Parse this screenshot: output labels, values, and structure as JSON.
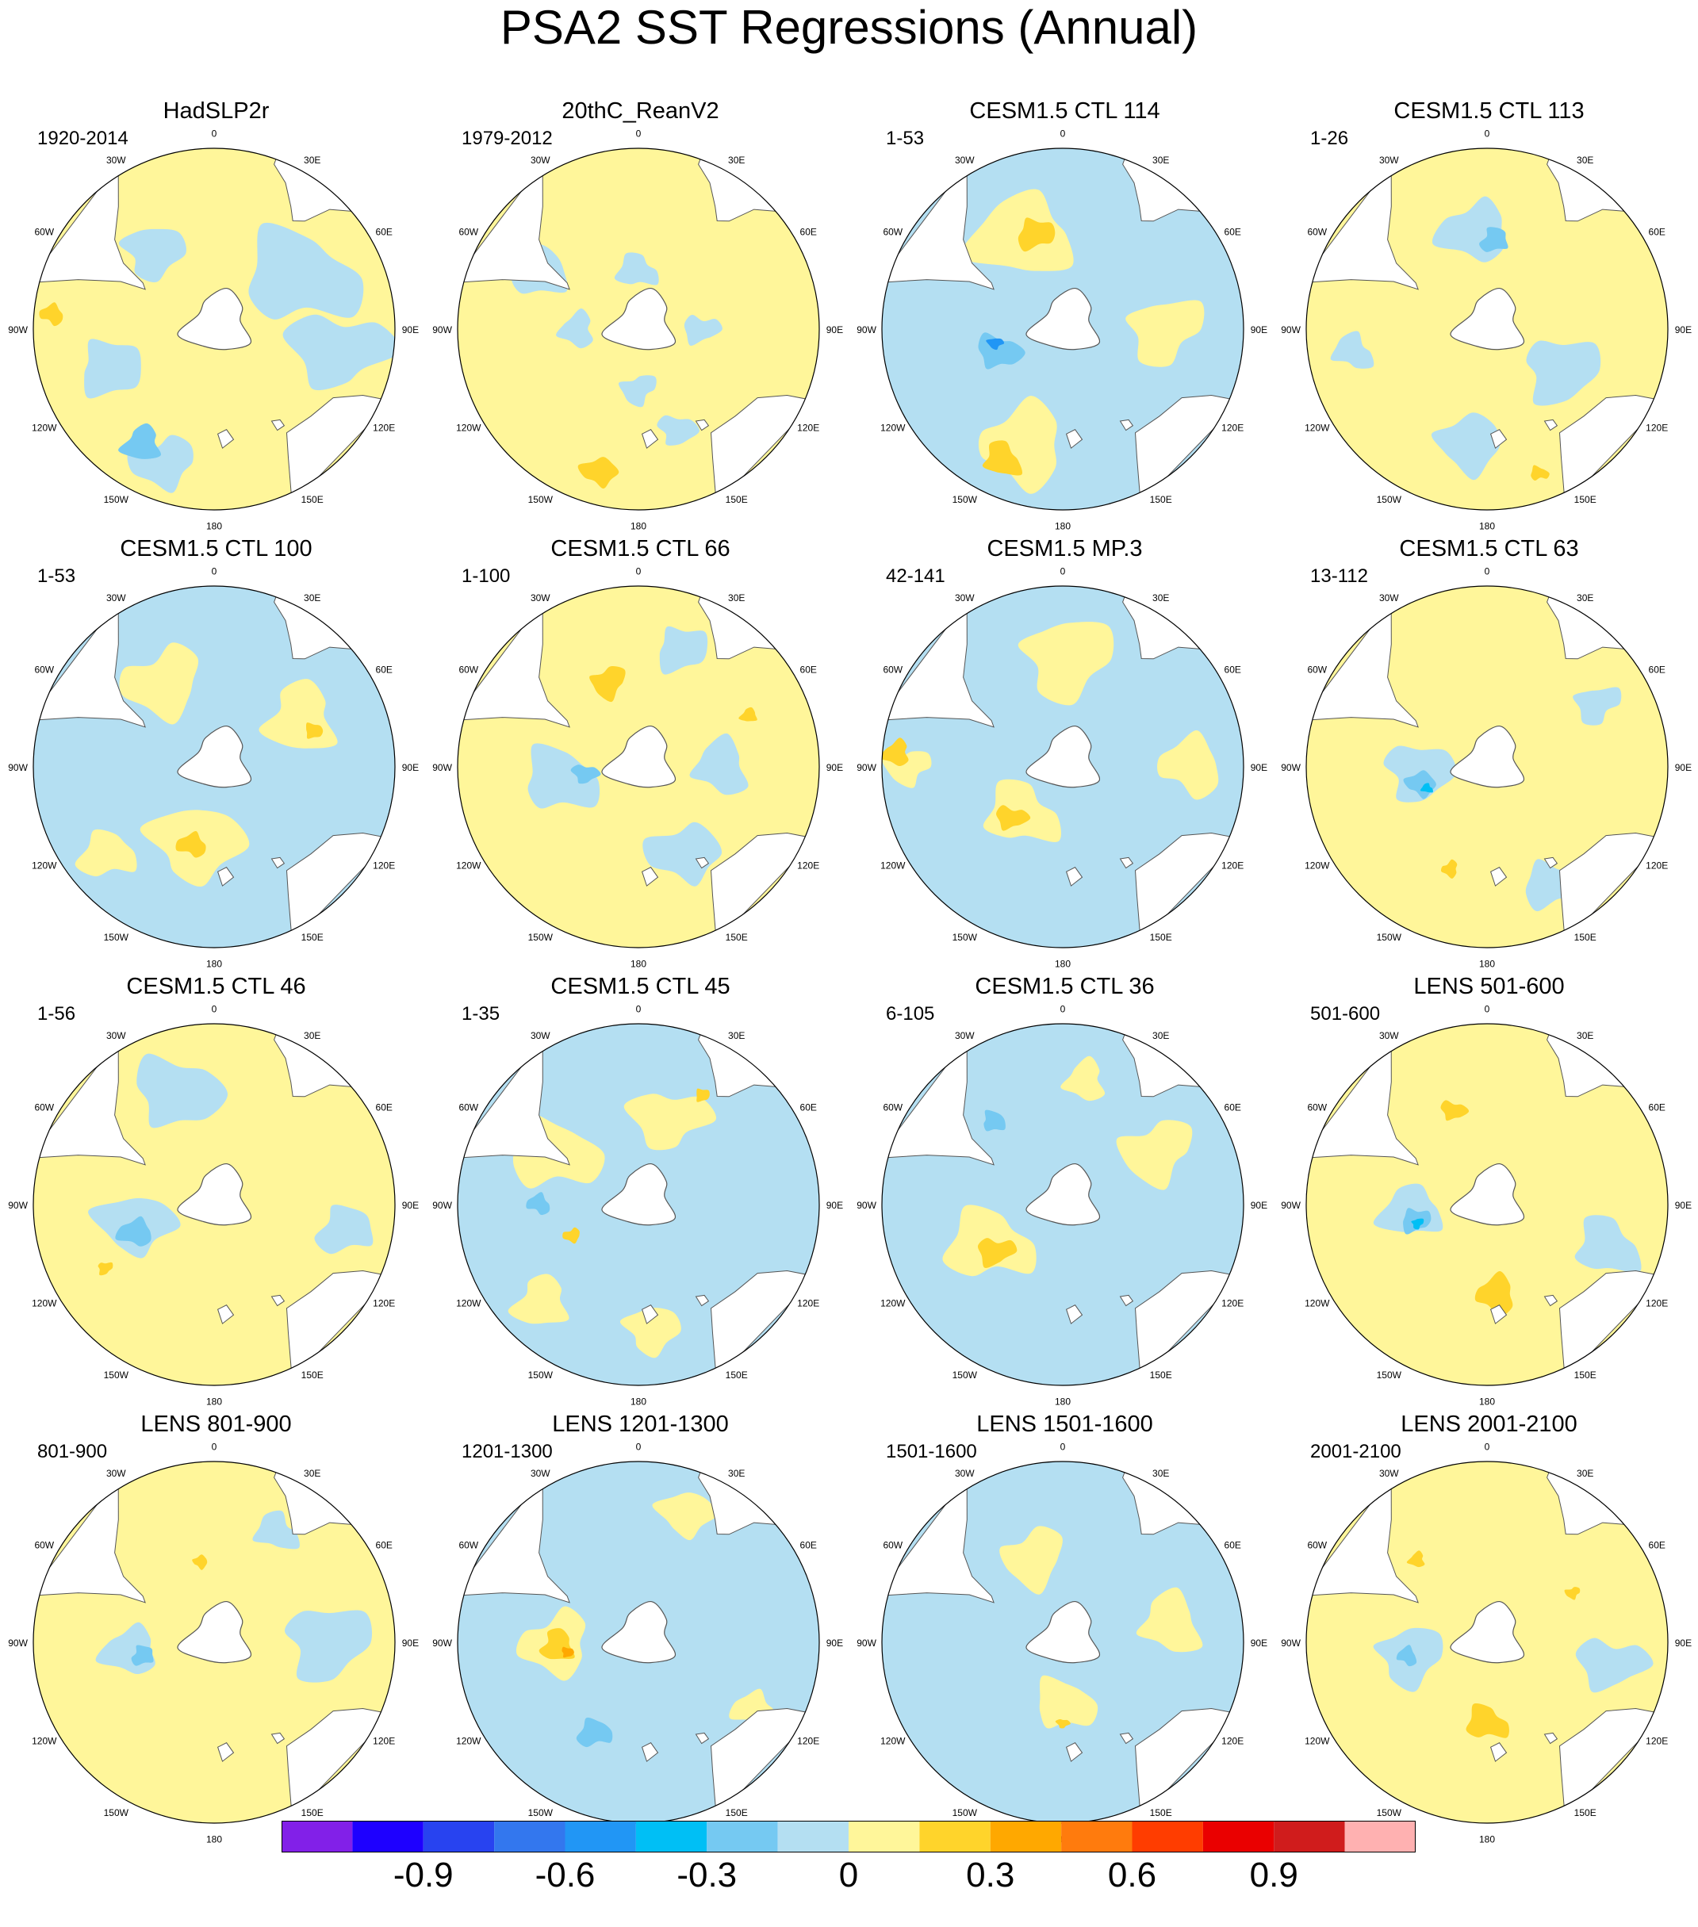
{
  "title": "PSA2 SST Regressions (Annual)",
  "longitude_labels": [
    {
      "lon": 0,
      "label": "0"
    },
    {
      "lon": 30,
      "label": "30E"
    },
    {
      "lon": 60,
      "label": "60E"
    },
    {
      "lon": 90,
      "label": "90E"
    },
    {
      "lon": 120,
      "label": "120E"
    },
    {
      "lon": 150,
      "label": "150E"
    },
    {
      "lon": 180,
      "label": "180"
    },
    {
      "lon": 210,
      "label": "150W"
    },
    {
      "lon": 240,
      "label": "120W"
    },
    {
      "lon": 270,
      "label": "90W"
    },
    {
      "lon": 300,
      "label": "60W"
    },
    {
      "lon": 330,
      "label": "30W"
    }
  ],
  "panels": [
    {
      "title": "HadSLP2r",
      "period": "1920-2014",
      "background": "yellow",
      "blobs": [
        {
          "lon": 60,
          "r": 0.55,
          "size": 0.38,
          "level": "lightblue"
        },
        {
          "lon": 100,
          "r": 0.7,
          "size": 0.32,
          "level": "lightblue"
        },
        {
          "lon": 200,
          "r": 0.78,
          "size": 0.22,
          "level": "lightblue"
        },
        {
          "lon": 212,
          "r": 0.74,
          "size": 0.14,
          "level": "medblue"
        },
        {
          "lon": 250,
          "r": 0.62,
          "size": 0.22,
          "level": "lightblue"
        },
        {
          "lon": 320,
          "r": 0.55,
          "size": 0.2,
          "level": "lightblue"
        },
        {
          "lon": 275,
          "r": 0.9,
          "size": 0.08,
          "level": "gold"
        }
      ]
    },
    {
      "title": "20thC_ReanV2",
      "period": "1979-2012",
      "background": "yellow",
      "blobs": [
        {
          "lon": 0,
          "r": 0.32,
          "size": 0.14,
          "level": "lightblue"
        },
        {
          "lon": 90,
          "r": 0.35,
          "size": 0.12,
          "level": "lightblue"
        },
        {
          "lon": 180,
          "r": 0.33,
          "size": 0.12,
          "level": "lightblue"
        },
        {
          "lon": 270,
          "r": 0.34,
          "size": 0.13,
          "level": "lightblue"
        },
        {
          "lon": 300,
          "r": 0.65,
          "size": 0.2,
          "level": "lightblue"
        },
        {
          "lon": 160,
          "r": 0.6,
          "size": 0.12,
          "level": "lightblue"
        },
        {
          "lon": 195,
          "r": 0.82,
          "size": 0.12,
          "level": "gold"
        }
      ]
    },
    {
      "title": "CESM1.5 CTL 114",
      "period": "1-53",
      "background": "lightblue",
      "blobs": [
        {
          "lon": 340,
          "r": 0.55,
          "size": 0.36,
          "level": "yellow"
        },
        {
          "lon": 345,
          "r": 0.55,
          "size": 0.13,
          "level": "gold"
        },
        {
          "lon": 90,
          "r": 0.55,
          "size": 0.25,
          "level": "yellow"
        },
        {
          "lon": 200,
          "r": 0.68,
          "size": 0.3,
          "level": "yellow"
        },
        {
          "lon": 205,
          "r": 0.8,
          "size": 0.13,
          "level": "gold"
        },
        {
          "lon": 250,
          "r": 0.38,
          "size": 0.14,
          "level": "medblue"
        },
        {
          "lon": 258,
          "r": 0.38,
          "size": 0.05,
          "level": "deepblue"
        }
      ]
    },
    {
      "title": "CESM1.5 CTL 113",
      "period": "1-26",
      "background": "yellow",
      "blobs": [
        {
          "lon": 355,
          "r": 0.55,
          "size": 0.25,
          "level": "lightblue"
        },
        {
          "lon": 5,
          "r": 0.5,
          "size": 0.1,
          "level": "medblue"
        },
        {
          "lon": 120,
          "r": 0.45,
          "size": 0.25,
          "level": "lightblue"
        },
        {
          "lon": 190,
          "r": 0.65,
          "size": 0.22,
          "level": "lightblue"
        },
        {
          "lon": 260,
          "r": 0.75,
          "size": 0.14,
          "level": "lightblue"
        },
        {
          "lon": 160,
          "r": 0.85,
          "size": 0.06,
          "level": "gold"
        }
      ]
    },
    {
      "title": "CESM1.5 CTL 100",
      "period": "1-53",
      "background": "lightblue",
      "blobs": [
        {
          "lon": 330,
          "r": 0.55,
          "size": 0.28,
          "level": "yellow"
        },
        {
          "lon": 60,
          "r": 0.55,
          "size": 0.26,
          "level": "yellow"
        },
        {
          "lon": 70,
          "r": 0.58,
          "size": 0.06,
          "level": "gold"
        },
        {
          "lon": 195,
          "r": 0.45,
          "size": 0.3,
          "level": "yellow"
        },
        {
          "lon": 195,
          "r": 0.45,
          "size": 0.1,
          "level": "gold"
        },
        {
          "lon": 230,
          "r": 0.75,
          "size": 0.2,
          "level": "yellow"
        }
      ]
    },
    {
      "title": "CESM1.5 CTL 66",
      "period": "1-100",
      "background": "yellow",
      "blobs": [
        {
          "lon": 340,
          "r": 0.5,
          "size": 0.12,
          "level": "gold"
        },
        {
          "lon": 90,
          "r": 0.45,
          "size": 0.2,
          "level": "lightblue"
        },
        {
          "lon": 260,
          "r": 0.45,
          "size": 0.25,
          "level": "lightblue"
        },
        {
          "lon": 262,
          "r": 0.3,
          "size": 0.08,
          "level": "medblue"
        },
        {
          "lon": 150,
          "r": 0.55,
          "size": 0.25,
          "level": "lightblue"
        },
        {
          "lon": 65,
          "r": 0.68,
          "size": 0.06,
          "level": "gold"
        },
        {
          "lon": 20,
          "r": 0.7,
          "size": 0.18,
          "level": "lightblue"
        }
      ]
    },
    {
      "title": "CESM1.5 MP.3",
      "period": "42-141",
      "background": "lightblue",
      "blobs": [
        {
          "lon": 0,
          "r": 0.6,
          "size": 0.3,
          "level": "yellow"
        },
        {
          "lon": 90,
          "r": 0.7,
          "size": 0.22,
          "level": "yellow"
        },
        {
          "lon": 220,
          "r": 0.35,
          "size": 0.25,
          "level": "yellow"
        },
        {
          "lon": 225,
          "r": 0.4,
          "size": 0.1,
          "level": "gold"
        },
        {
          "lon": 270,
          "r": 0.85,
          "size": 0.15,
          "level": "yellow"
        },
        {
          "lon": 275,
          "r": 0.92,
          "size": 0.1,
          "level": "gold"
        }
      ]
    },
    {
      "title": "CESM1.5 CTL 63",
      "period": "13-112",
      "background": "yellow",
      "blobs": [
        {
          "lon": 265,
          "r": 0.4,
          "size": 0.22,
          "level": "lightblue"
        },
        {
          "lon": 255,
          "r": 0.38,
          "size": 0.1,
          "level": "medblue"
        },
        {
          "lon": 250,
          "r": 0.35,
          "size": 0.04,
          "level": "cyan"
        },
        {
          "lon": 150,
          "r": 0.75,
          "size": 0.2,
          "level": "lightblue"
        },
        {
          "lon": 60,
          "r": 0.7,
          "size": 0.15,
          "level": "lightblue"
        },
        {
          "lon": 200,
          "r": 0.6,
          "size": 0.06,
          "level": "gold"
        }
      ]
    },
    {
      "title": "CESM1.5 CTL 46",
      "period": "1-56",
      "background": "yellow",
      "blobs": [
        {
          "lon": 340,
          "r": 0.65,
          "size": 0.28,
          "level": "lightblue"
        },
        {
          "lon": 255,
          "r": 0.45,
          "size": 0.25,
          "level": "lightblue"
        },
        {
          "lon": 250,
          "r": 0.45,
          "size": 0.12,
          "level": "medblue"
        },
        {
          "lon": 100,
          "r": 0.75,
          "size": 0.2,
          "level": "lightblue"
        },
        {
          "lon": 240,
          "r": 0.7,
          "size": 0.05,
          "level": "gold"
        }
      ]
    },
    {
      "title": "CESM1.5 CTL 45",
      "period": "1-35",
      "background": "lightblue",
      "blobs": [
        {
          "lon": 300,
          "r": 0.55,
          "size": 0.3,
          "level": "yellow"
        },
        {
          "lon": 20,
          "r": 0.5,
          "size": 0.25,
          "level": "yellow"
        },
        {
          "lon": 245,
          "r": 0.4,
          "size": 0.06,
          "level": "gold"
        },
        {
          "lon": 225,
          "r": 0.75,
          "size": 0.2,
          "level": "yellow"
        },
        {
          "lon": 30,
          "r": 0.7,
          "size": 0.05,
          "level": "gold"
        },
        {
          "lon": 175,
          "r": 0.7,
          "size": 0.18,
          "level": "yellow"
        },
        {
          "lon": 270,
          "r": 0.55,
          "size": 0.08,
          "level": "medblue"
        }
      ]
    },
    {
      "title": "CESM1.5 CTL 36",
      "period": "6-105",
      "background": "lightblue",
      "blobs": [
        {
          "lon": 240,
          "r": 0.45,
          "size": 0.3,
          "level": "yellow"
        },
        {
          "lon": 235,
          "r": 0.45,
          "size": 0.12,
          "level": "gold"
        },
        {
          "lon": 60,
          "r": 0.6,
          "size": 0.25,
          "level": "yellow"
        },
        {
          "lon": 10,
          "r": 0.7,
          "size": 0.15,
          "level": "yellow"
        },
        {
          "lon": 320,
          "r": 0.6,
          "size": 0.08,
          "level": "medblue"
        }
      ]
    },
    {
      "title": "LENS 501-600",
      "period": "501-600",
      "background": "yellow",
      "blobs": [
        {
          "lon": 265,
          "r": 0.4,
          "size": 0.22,
          "level": "lightblue"
        },
        {
          "lon": 258,
          "r": 0.4,
          "size": 0.1,
          "level": "medblue"
        },
        {
          "lon": 255,
          "r": 0.4,
          "size": 0.04,
          "level": "cyan"
        },
        {
          "lon": 175,
          "r": 0.5,
          "size": 0.14,
          "level": "gold"
        },
        {
          "lon": 110,
          "r": 0.7,
          "size": 0.22,
          "level": "lightblue"
        },
        {
          "lon": 340,
          "r": 0.55,
          "size": 0.08,
          "level": "gold"
        }
      ]
    },
    {
      "title": "LENS 801-900",
      "period": "801-900",
      "background": "yellow",
      "blobs": [
        {
          "lon": 265,
          "r": 0.45,
          "size": 0.2,
          "level": "lightblue"
        },
        {
          "lon": 260,
          "r": 0.4,
          "size": 0.08,
          "level": "medblue"
        },
        {
          "lon": 90,
          "r": 0.6,
          "size": 0.28,
          "level": "lightblue"
        },
        {
          "lon": 350,
          "r": 0.45,
          "size": 0.05,
          "level": "gold"
        },
        {
          "lon": 30,
          "r": 0.7,
          "size": 0.15,
          "level": "lightblue"
        }
      ]
    },
    {
      "title": "LENS 1201-1300",
      "period": "1201-1300",
      "background": "lightblue",
      "blobs": [
        {
          "lon": 270,
          "r": 0.45,
          "size": 0.25,
          "level": "yellow"
        },
        {
          "lon": 268,
          "r": 0.45,
          "size": 0.12,
          "level": "gold"
        },
        {
          "lon": 262,
          "r": 0.4,
          "size": 0.04,
          "level": "orange"
        },
        {
          "lon": 20,
          "r": 0.75,
          "size": 0.18,
          "level": "yellow"
        },
        {
          "lon": 120,
          "r": 0.75,
          "size": 0.15,
          "level": "yellow"
        },
        {
          "lon": 205,
          "r": 0.55,
          "size": 0.12,
          "level": "medblue"
        }
      ]
    },
    {
      "title": "LENS 1501-1600",
      "period": "1501-1600",
      "background": "lightblue",
      "blobs": [
        {
          "lon": 340,
          "r": 0.5,
          "size": 0.22,
          "level": "yellow"
        },
        {
          "lon": 80,
          "r": 0.6,
          "size": 0.22,
          "level": "yellow"
        },
        {
          "lon": 180,
          "r": 0.35,
          "size": 0.2,
          "level": "yellow"
        },
        {
          "lon": 180,
          "r": 0.45,
          "size": 0.04,
          "level": "gold"
        }
      ]
    },
    {
      "title": "LENS 2001-2100",
      "period": "2001-2100",
      "background": "yellow",
      "blobs": [
        {
          "lon": 260,
          "r": 0.45,
          "size": 0.22,
          "level": "lightblue"
        },
        {
          "lon": 260,
          "r": 0.45,
          "size": 0.07,
          "level": "medblue"
        },
        {
          "lon": 180,
          "r": 0.45,
          "size": 0.14,
          "level": "gold"
        },
        {
          "lon": 100,
          "r": 0.7,
          "size": 0.22,
          "level": "lightblue"
        },
        {
          "lon": 60,
          "r": 0.55,
          "size": 0.05,
          "level": "gold"
        },
        {
          "lon": 320,
          "r": 0.6,
          "size": 0.06,
          "level": "gold"
        }
      ]
    }
  ],
  "colorbar": {
    "colors": [
      "#8220e8",
      "#1e00ff",
      "#2843f0",
      "#3377ee",
      "#2196f5",
      "#00bff5",
      "#75c9f2",
      "#b4dff2",
      "#fff69a",
      "#ffd42b",
      "#ffa800",
      "#ff7b0d",
      "#ff3d00",
      "#ea0000",
      "#d01c1c",
      "#ffb1b1"
    ],
    "labels": [
      {
        "value": -0.9,
        "text": "-0.9",
        "boundary": 2
      },
      {
        "value": -0.6,
        "text": "-0.6",
        "boundary": 4
      },
      {
        "value": -0.3,
        "text": "-0.3",
        "boundary": 6
      },
      {
        "value": 0,
        "text": "0",
        "boundary": 8
      },
      {
        "value": 0.3,
        "text": "0.3",
        "boundary": 10
      },
      {
        "value": 0.6,
        "text": "0.6",
        "boundary": 12
      },
      {
        "value": 0.9,
        "text": "0.9",
        "boundary": 14
      }
    ]
  },
  "palette": {
    "lightblue": "#b4dff2",
    "medblue": "#75c9f2",
    "cyan": "#00bff5",
    "deepblue": "#2196f5",
    "yellow": "#fff69a",
    "gold": "#ffd42b",
    "orange": "#ffa800",
    "land": "#ffffff",
    "outline": "#555555"
  }
}
